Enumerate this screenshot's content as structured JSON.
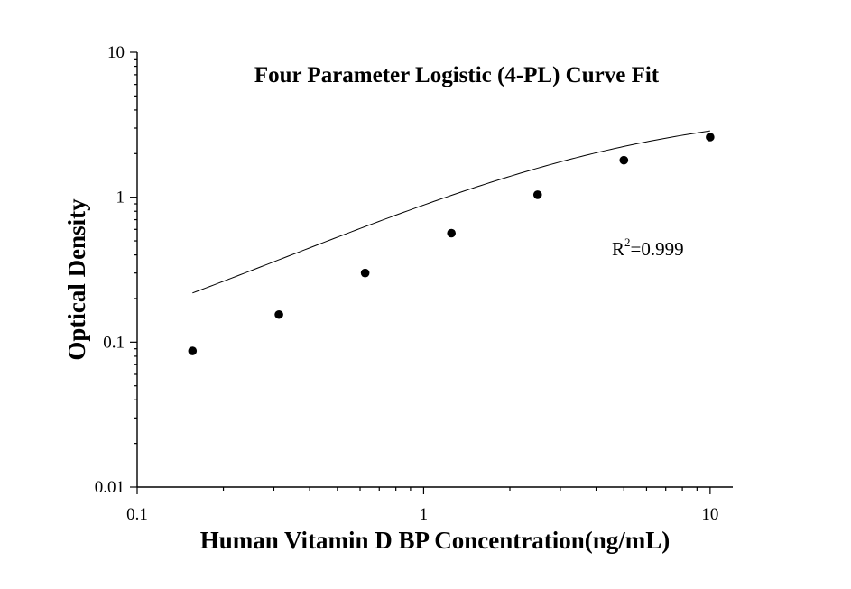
{
  "chart_data": {
    "type": "scatter",
    "title": "Four Parameter Logistic (4-PL) Curve Fit",
    "xlabel": "Human Vitamin D BP Concentration(ng/mL)",
    "ylabel": "Optical Density",
    "x_scale": "log",
    "y_scale": "log",
    "xlim": [
      0.1,
      12
    ],
    "ylim": [
      0.01,
      10
    ],
    "x_ticks": [
      {
        "value": 0.1,
        "label": "0.1"
      },
      {
        "value": 1,
        "label": "1"
      },
      {
        "value": 10,
        "label": "10"
      }
    ],
    "y_ticks": [
      {
        "value": 0.01,
        "label": "0.01"
      },
      {
        "value": 0.1,
        "label": "0.1"
      },
      {
        "value": 1,
        "label": "1"
      },
      {
        "value": 10,
        "label": "10"
      }
    ],
    "grid": false,
    "legend": "none",
    "series": [
      {
        "x": [
          0.156,
          0.3125,
          0.625,
          1.25,
          2.5,
          5,
          10
        ],
        "y": [
          0.087,
          0.155,
          0.3,
          0.565,
          1.04,
          1.8,
          2.6
        ]
      }
    ],
    "fit": {
      "model": "4-PL",
      "x_range": [
        0.156,
        10
      ],
      "A": 0.034,
      "D": 4.2,
      "C": 4.4,
      "B": 0.92
    },
    "annotation": {
      "base": "R",
      "superscript": "2",
      "value": "=0.999"
    },
    "colors": {
      "axis": "#000000",
      "points": "#000000",
      "curve": "#000000",
      "background": "#ffffff"
    }
  }
}
